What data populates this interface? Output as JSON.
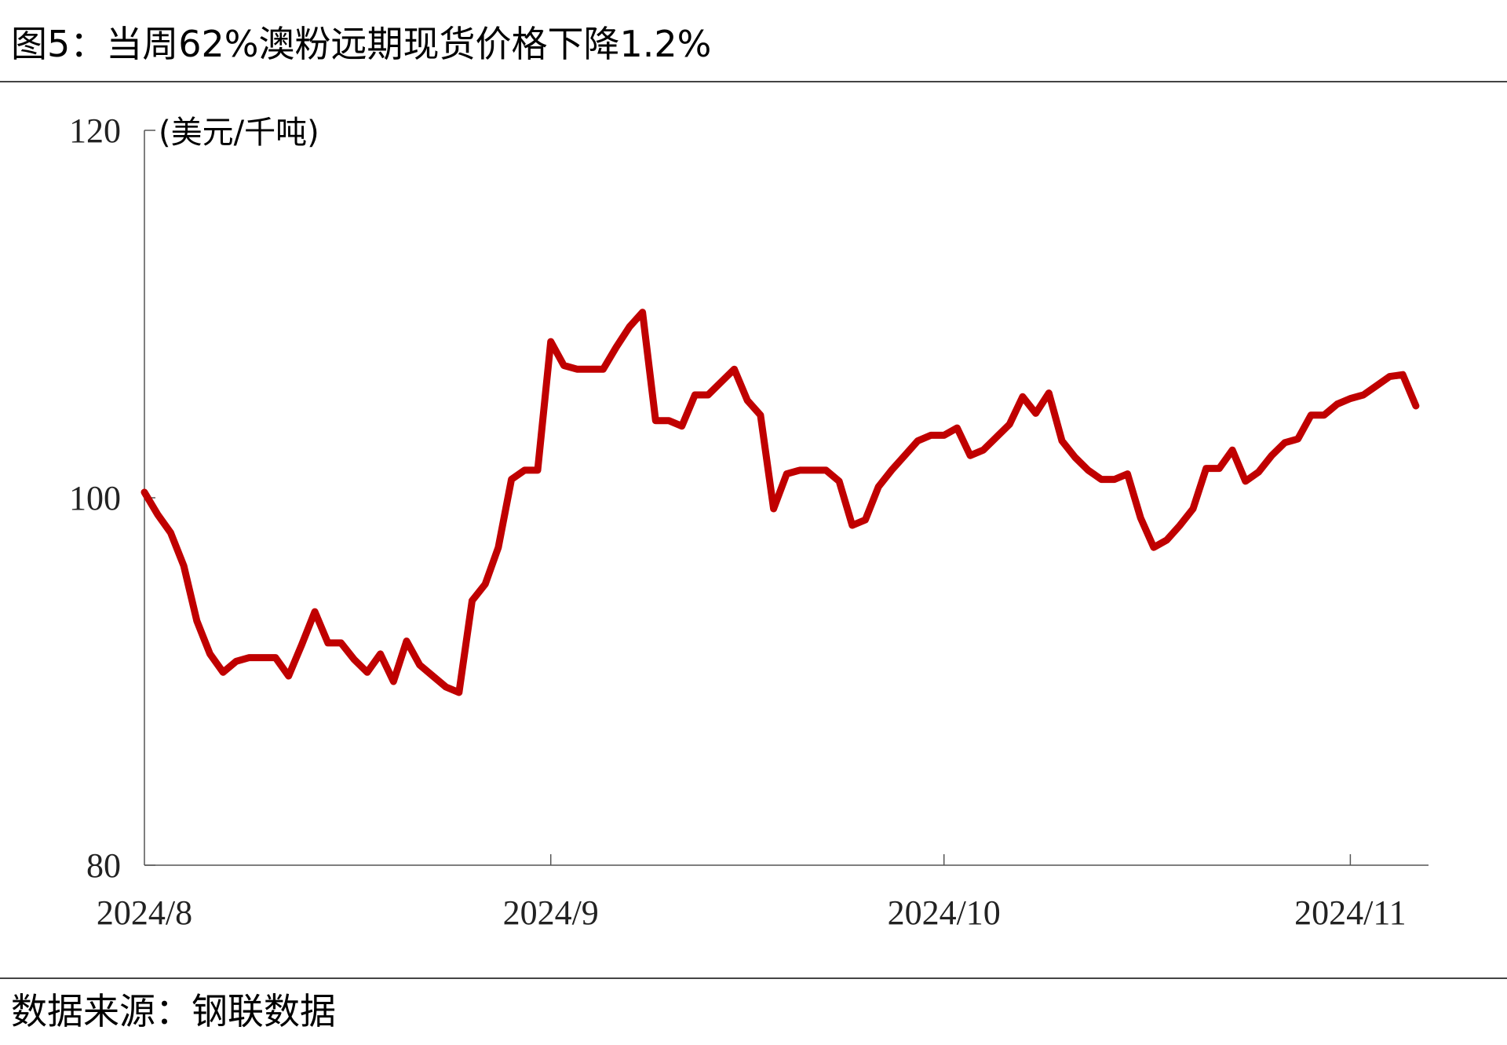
{
  "chart_data": {
    "type": "line",
    "title": "图5：当周62%澳粉远期现货价格下降1.2%",
    "unit_label": "(美元/千吨)",
    "source": "数据来源：钢联数据",
    "categories": [
      "2024/8",
      null,
      null,
      null,
      null,
      null,
      null,
      null,
      null,
      null,
      null,
      null,
      null,
      null,
      null,
      null,
      null,
      null,
      null,
      null,
      null,
      null,
      null,
      null,
      null,
      null,
      null,
      null,
      null,
      null,
      null,
      "2024/9",
      null,
      null,
      null,
      null,
      null,
      null,
      null,
      null,
      null,
      null,
      null,
      null,
      null,
      null,
      null,
      null,
      null,
      null,
      null,
      null,
      null,
      null,
      null,
      null,
      null,
      null,
      null,
      null,
      null,
      "2024/10",
      null,
      null,
      null,
      null,
      null,
      null,
      null,
      null,
      null,
      null,
      null,
      null,
      null,
      null,
      null,
      null,
      null,
      null,
      null,
      null,
      null,
      null,
      null,
      null,
      null,
      null,
      null,
      null,
      null,
      null,
      "2024/11",
      null,
      null,
      null,
      null,
      null
    ],
    "series": [
      {
        "name": "62%澳粉远期现货价格",
        "color": "#c00000",
        "values": [
          100.3,
          99.1,
          98.1,
          96.3,
          93.3,
          91.5,
          90.5,
          91.1,
          91.3,
          91.3,
          91.3,
          90.3,
          92.0,
          93.8,
          92.1,
          92.1,
          91.2,
          90.5,
          91.5,
          90.0,
          92.2,
          90.9,
          90.3,
          89.7,
          89.4,
          94.4,
          95.3,
          97.3,
          101.0,
          101.5,
          101.5,
          108.5,
          107.2,
          107.0,
          107.0,
          107.0,
          108.2,
          109.3,
          110.1,
          104.2,
          104.2,
          103.9,
          105.6,
          105.6,
          106.3,
          107.0,
          105.3,
          104.5,
          99.4,
          101.3,
          101.5,
          101.5,
          101.5,
          100.9,
          98.5,
          98.8,
          100.6,
          101.5,
          102.3,
          103.1,
          103.4,
          103.4,
          103.8,
          102.3,
          102.6,
          103.3,
          104.0,
          105.5,
          104.6,
          105.7,
          103.1,
          102.2,
          101.5,
          101.0,
          101.0,
          101.3,
          98.9,
          97.3,
          97.7,
          98.5,
          99.4,
          101.6,
          101.6,
          102.6,
          100.9,
          101.4,
          102.3,
          103.0,
          103.2,
          104.5,
          104.5,
          105.1,
          105.4,
          105.6,
          106.1,
          106.6,
          106.7,
          105.0
        ]
      }
    ],
    "ylim": [
      80,
      120
    ],
    "yticks": [
      80,
      100,
      120
    ]
  }
}
